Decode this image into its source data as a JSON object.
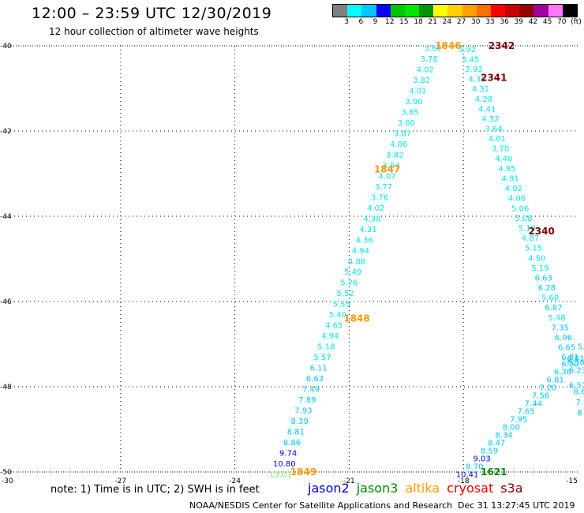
{
  "header": {
    "title": "12:00 – 23:59 UTC 12/30/2019",
    "subtitle": "12 hour collection of altimeter wave heights"
  },
  "colorbar": {
    "colors": [
      "#808080",
      "#00ffff",
      "#00c8ff",
      "#0000ff",
      "#00c800",
      "#00e600",
      "#009600",
      "#ffff00",
      "#ffd200",
      "#ffa000",
      "#ff6e00",
      "#ff0000",
      "#c80000",
      "#960000",
      "#a000a0",
      "#ff78ff",
      "#000000"
    ],
    "labels": [
      "3",
      "6",
      "9",
      "12",
      "15",
      "18",
      "21",
      "24",
      "27",
      "30",
      "33",
      "36",
      "39",
      "42",
      "45",
      "70",
      "(ft)"
    ]
  },
  "map": {
    "lon_ticks": [
      "-30",
      "-27",
      "-24",
      "-21",
      "-18",
      "-15"
    ],
    "lat_ticks": [
      "-40",
      "-42",
      "-44",
      "-46",
      "-48",
      "-50"
    ],
    "lon_range": [
      -30,
      -15
    ],
    "lat_range": [
      -50,
      -40
    ]
  },
  "tracks": [
    {
      "satellite": "altika",
      "color": "#00e8f0",
      "start": [
        -18.8,
        -40.05
      ],
      "end": [
        -22.8,
        -50.05
      ],
      "values": [
        "3.62",
        "3.78",
        "4.02",
        "3.82",
        "4.01",
        "3.90",
        "3.85",
        "3.80",
        "3.87",
        "4.06",
        "3.82",
        "3.84",
        "4.07",
        "3.77",
        "3.76",
        "4.02",
        "4.38",
        "4.31",
        "4.36",
        "4.94",
        "4.88",
        "5.49",
        "5.76",
        "5.52",
        "5.55",
        "5.40",
        "4.65",
        "4.94",
        "5.18",
        "5.57",
        "6.11",
        "6.63",
        "7.49",
        "7.89",
        "7.93",
        "8.39",
        "8.81",
        "8.86",
        "9.74",
        "10.80",
        "13.01"
      ],
      "value_colors": [
        "#00e8f0",
        "#00e8f0",
        "#00e8f0",
        "#00e8f0",
        "#00e8f0",
        "#00e8f0",
        "#00e8f0",
        "#00e8f0",
        "#00e8f0",
        "#00e8f0",
        "#00e8f0",
        "#00e8f0",
        "#00e8f0",
        "#00e8f0",
        "#00e8f0",
        "#00e8f0",
        "#00e8f0",
        "#00e8f0",
        "#00e8f0",
        "#00e8f0",
        "#00e8f0",
        "#00e8f0",
        "#00e8f0",
        "#00e8f0",
        "#00e8f0",
        "#00e8f0",
        "#00e8f0",
        "#00e8f0",
        "#00e8f0",
        "#00e8f0",
        "#00c8ff",
        "#00c8ff",
        "#00c8ff",
        "#00c8ff",
        "#00c8ff",
        "#00c8ff",
        "#00c8ff",
        "#00c8ff",
        "#0000ff",
        "#0000ff",
        "#66ee66"
      ],
      "times": [
        {
          "text": "1846",
          "lon": -18.4,
          "lat": -40.0,
          "color": "#ff9900"
        },
        {
          "text": "1847",
          "lon": -20.0,
          "lat": -42.9,
          "color": "#ff9900"
        },
        {
          "text": "1848",
          "lon": -20.8,
          "lat": -46.4,
          "color": "#ff9900"
        },
        {
          "text": "1849",
          "lon": -22.2,
          "lat": -50.0,
          "color": "#ff9900"
        }
      ]
    },
    {
      "satellite": "s3a",
      "color": "#00e8f0",
      "start": [
        -17.9,
        -40.07
      ],
      "end": [
        -15.2,
        -47.3
      ],
      "values": [
        "3.92",
        "3.45",
        "3.93",
        "4.35",
        "4.31",
        "4.28",
        "4.41",
        "4.32",
        "3.64",
        "4.01",
        "3.70",
        "4.40",
        "4.95",
        "4.91",
        "4.92",
        "4.06",
        "5.06",
        "5.08",
        "5.10",
        "4.87",
        "5.15",
        "4.50",
        "5.19",
        "6.63",
        "6.28",
        "5.60",
        "6.87",
        "5.48",
        "7.35",
        "6.96",
        "6.65",
        "6.81"
      ],
      "value_colors": [
        "#00e8f0",
        "#00e8f0",
        "#00e8f0",
        "#00e8f0",
        "#00e8f0",
        "#00e8f0",
        "#00e8f0",
        "#00e8f0",
        "#00e8f0",
        "#00e8f0",
        "#00e8f0",
        "#00e8f0",
        "#00e8f0",
        "#00e8f0",
        "#00e8f0",
        "#00e8f0",
        "#00e8f0",
        "#00e8f0",
        "#00e8f0",
        "#00e8f0",
        "#00e8f0",
        "#00e8f0",
        "#00e8f0",
        "#00c8ff",
        "#00c8ff",
        "#00e8f0",
        "#00c8ff",
        "#00e8f0",
        "#00c8ff",
        "#00c8ff",
        "#00c8ff",
        "#00c8ff"
      ],
      "times": [
        {
          "text": "2342",
          "lon": -17.0,
          "lat": -40.0,
          "color": "#800000"
        },
        {
          "text": "2341",
          "lon": -17.2,
          "lat": -40.75,
          "color": "#800000"
        },
        {
          "text": "2340",
          "lon": -15.95,
          "lat": -44.35,
          "color": "#800000"
        }
      ]
    },
    {
      "satellite": "jason3",
      "color": "#00c8ff",
      "start": [
        -15.2,
        -47.45
      ],
      "end": [
        -17.9,
        -50.05
      ],
      "values": [
        "6.30",
        "6.36",
        "6.81",
        "7.20",
        "7.56",
        "7.44",
        "7.65",
        "7.95",
        "8.00",
        "8.34",
        "8.47",
        "8.59",
        "9.03",
        "8.70",
        "10.41"
      ],
      "value_colors": [
        "#00c8ff",
        "#00c8ff",
        "#00c8ff",
        "#00c8ff",
        "#00c8ff",
        "#00c8ff",
        "#00c8ff",
        "#00c8ff",
        "#00c8ff",
        "#00c8ff",
        "#00c8ff",
        "#00c8ff",
        "#0000ff",
        "#00c8ff",
        "#0000ff"
      ],
      "times": [
        {
          "text": "1621",
          "lon": -17.2,
          "lat": -50.0,
          "color": "#008800"
        }
      ]
    }
  ],
  "edge_labels": [
    {
      "text": "6.81",
      "lon": -15.05,
      "lat": -47.32,
      "color": "#00c8ff"
    },
    {
      "text": "6.56",
      "lon": -15.05,
      "lat": -47.42,
      "color": "#00c8ff"
    },
    {
      "text": "6.23",
      "lon": -15.0,
      "lat": -47.6,
      "color": "#00c8ff"
    },
    {
      "text": "6.57",
      "lon": -15.0,
      "lat": -47.95,
      "color": "#00c8ff"
    },
    {
      "text": "8.6",
      "lon": -14.95,
      "lat": -48.1,
      "color": "#00c8ff"
    },
    {
      "text": "7.",
      "lon": -14.95,
      "lat": -48.35,
      "color": "#00c8ff"
    },
    {
      "text": "8",
      "lon": -14.95,
      "lat": -48.6,
      "color": "#00c8ff"
    },
    {
      "text": "5.",
      "lon": -14.9,
      "lat": -47.05,
      "color": "#00c8ff"
    }
  ],
  "footer": {
    "note": "note:  1) Time is in UTC; 2) SWH is in feet",
    "legend": [
      {
        "name": "jason2",
        "color": "#0000ee"
      },
      {
        "name": "jason3",
        "color": "#008800"
      },
      {
        "name": "altika",
        "color": "#ff9900"
      },
      {
        "name": "cryosat",
        "color": "#ee0000"
      },
      {
        "name": "s3a",
        "color": "#800000"
      }
    ],
    "credit": "NOAA/NESDIS Center for Satellite Applications and Research",
    "timestamp": "Dec 31 13:27:45 UTC 2019"
  }
}
